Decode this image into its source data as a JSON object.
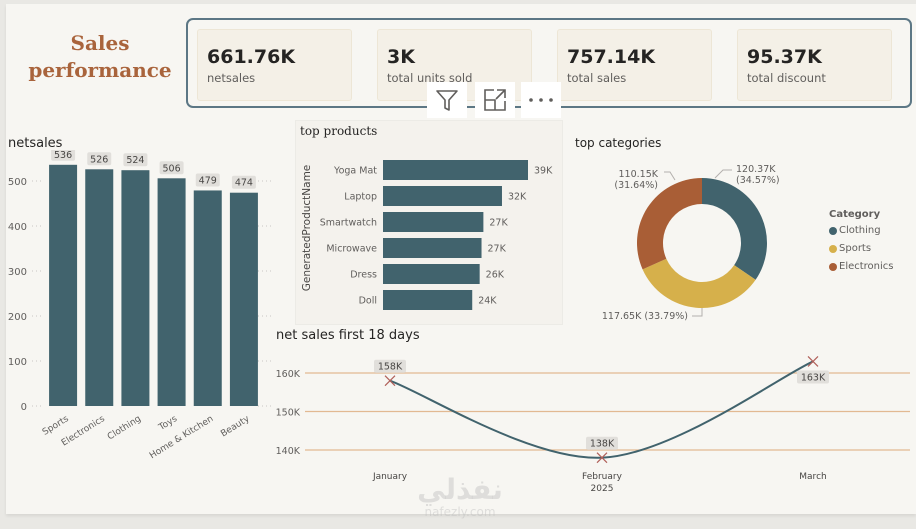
{
  "page": {
    "title_line1": "Sales",
    "title_line2": "performance",
    "watermark_arabic": "نفذلي",
    "watermark_latin": "nafezly.com"
  },
  "kpis": [
    {
      "value": "661.76K",
      "label": "netsales"
    },
    {
      "value": "3K",
      "label": "total units sold"
    },
    {
      "value": "757.14K",
      "label": "total sales"
    },
    {
      "value": "95.37K",
      "label": "total discount"
    }
  ],
  "visual_header": {
    "icons": [
      "filter-icon",
      "focus-mode-icon",
      "more-options-icon"
    ]
  },
  "colors": {
    "bar": "#41636d",
    "clothing": "#41636d",
    "sports": "#d6b04b",
    "electronics": "#a95e36",
    "gridline_orange": "#e2b992",
    "line": "#41636d",
    "marker": "#b0605a",
    "title_brown": "#a9643c"
  },
  "chart_data": [
    {
      "id": "netsales",
      "type": "bar",
      "title": "netsales",
      "categories": [
        "Sports",
        "Electronics",
        "Clothing",
        "Toys",
        "Home & Kitchen",
        "Beauty"
      ],
      "values": [
        536,
        526,
        524,
        506,
        479,
        474
      ],
      "data_labels": [
        "536",
        "526",
        "524",
        "506",
        "479",
        "474"
      ],
      "xlabel": "",
      "ylabel": "",
      "ylim": [
        0,
        560
      ],
      "yticks": [
        0,
        100,
        200,
        300,
        400,
        500
      ],
      "grid": true
    },
    {
      "id": "top-products",
      "type": "bar",
      "orientation": "horizontal",
      "title": "top products",
      "ylabel": "GeneratedProductName",
      "categories": [
        "Yoga Mat",
        "Laptop",
        "Smartwatch",
        "Microwave",
        "Dress",
        "Doll"
      ],
      "values": [
        39,
        32,
        27,
        26.5,
        26,
        24
      ],
      "data_labels": [
        "39K",
        "32K",
        "27K",
        "27K",
        "26K",
        "24K"
      ],
      "xlim": [
        0,
        40
      ]
    },
    {
      "id": "top-categories",
      "type": "pie",
      "donut": true,
      "title": "top categories",
      "legend_title": "Category",
      "legend_position": "right",
      "slices": [
        {
          "name": "Clothing",
          "value": 120.37,
          "label": "120.37K",
          "pct": "(34.57%)"
        },
        {
          "name": "Sports",
          "value": 117.65,
          "label": "117.65K (33.79%)",
          "pct": ""
        },
        {
          "name": "Electronics",
          "value": 110.15,
          "label": "110.15K",
          "pct": "(31.64%)"
        }
      ]
    },
    {
      "id": "net-sales-first-18-days",
      "type": "line",
      "title": "net sales first 18 days",
      "x": [
        "January",
        "February",
        "March"
      ],
      "x_sublabels": [
        "",
        "2025",
        ""
      ],
      "values": [
        158,
        138,
        163
      ],
      "data_labels": [
        "158K",
        "138K",
        "163K"
      ],
      "yticks": [
        140,
        150,
        160
      ],
      "ytick_labels": [
        "140K",
        "150K",
        "160K"
      ],
      "ylim": [
        130,
        170
      ],
      "grid": true
    }
  ]
}
